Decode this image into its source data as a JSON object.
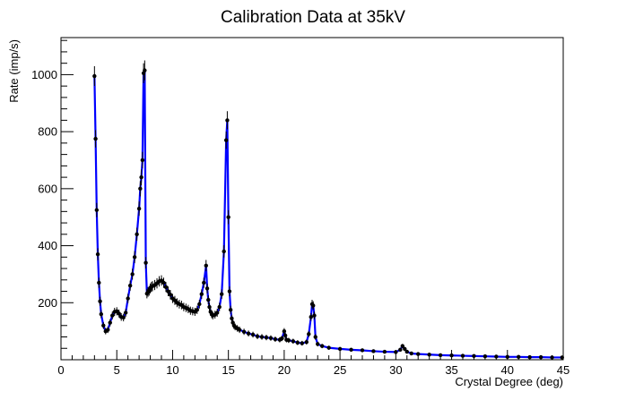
{
  "chart_data": {
    "type": "line",
    "title": "Calibration Data at 35kV",
    "xlabel": "Crystal Degree (deg)",
    "ylabel": "Rate (imp/s)",
    "xlim": [
      0,
      45
    ],
    "ylim": [
      0,
      1130
    ],
    "x_ticks": [
      0,
      5,
      10,
      15,
      20,
      25,
      30,
      35,
      40,
      45
    ],
    "y_ticks": [
      200,
      400,
      600,
      800,
      1000
    ],
    "grid": false,
    "legend": "none",
    "line_color": "#0000ff",
    "marker_color": "#000000",
    "series": [
      {
        "x": [
          3.0,
          3.1,
          3.2,
          3.3,
          3.4,
          3.5,
          3.6,
          3.8,
          4.0,
          4.2,
          4.4,
          4.6,
          4.8,
          5.0,
          5.2,
          5.4,
          5.6,
          5.8,
          6.0,
          6.2,
          6.4,
          6.6,
          6.8,
          7.0,
          7.1,
          7.2,
          7.3,
          7.4,
          7.5,
          7.6,
          7.7,
          7.8,
          7.9,
          8.0,
          8.1,
          8.2,
          8.4,
          8.6,
          8.8,
          9.0,
          9.2,
          9.4,
          9.6,
          9.8,
          10.0,
          10.2,
          10.4,
          10.6,
          10.8,
          11.0,
          11.2,
          11.4,
          11.6,
          11.8,
          12.0,
          12.2,
          12.4,
          12.6,
          12.8,
          13.0,
          13.1,
          13.2,
          13.3,
          13.4,
          13.5,
          13.6,
          13.8,
          14.0,
          14.2,
          14.4,
          14.6,
          14.8,
          14.9,
          15.0,
          15.1,
          15.2,
          15.3,
          15.4,
          15.5,
          15.6,
          15.8,
          16.0,
          16.4,
          16.8,
          17.2,
          17.6,
          18.0,
          18.4,
          18.8,
          19.2,
          19.6,
          19.8,
          20.0,
          20.1,
          20.2,
          20.4,
          20.8,
          21.2,
          21.6,
          22.0,
          22.2,
          22.4,
          22.5,
          22.6,
          22.7,
          22.8,
          23.0,
          23.4,
          24.0,
          25.0,
          26.0,
          27.0,
          28.0,
          29.0,
          30.0,
          30.4,
          30.6,
          30.8,
          31.0,
          31.4,
          32.0,
          33.0,
          34.0,
          35.0,
          36.0,
          37.0,
          38.0,
          39.0,
          40.0,
          41.0,
          42.0,
          43.0,
          44.0,
          44.9
        ],
        "y": [
          995,
          775,
          525,
          370,
          270,
          205,
          160,
          120,
          100,
          105,
          130,
          155,
          168,
          170,
          162,
          150,
          148,
          165,
          215,
          260,
          300,
          360,
          440,
          530,
          600,
          640,
          700,
          1005,
          1015,
          340,
          232,
          238,
          242,
          250,
          255,
          258,
          262,
          268,
          275,
          278,
          270,
          255,
          240,
          228,
          215,
          208,
          200,
          195,
          192,
          185,
          182,
          178,
          172,
          170,
          168,
          175,
          195,
          230,
          270,
          330,
          250,
          210,
          185,
          168,
          160,
          155,
          158,
          165,
          185,
          230,
          380,
          770,
          840,
          500,
          240,
          175,
          145,
          130,
          120,
          115,
          110,
          105,
          98,
          92,
          88,
          82,
          80,
          78,
          76,
          72,
          70,
          75,
          100,
          85,
          70,
          68,
          65,
          60,
          58,
          62,
          90,
          150,
          195,
          190,
          155,
          80,
          55,
          48,
          42,
          38,
          35,
          33,
          30,
          28,
          27,
          35,
          48,
          38,
          28,
          22,
          20,
          18,
          16,
          15,
          14,
          13,
          12,
          11,
          10,
          10,
          9,
          9,
          8,
          8
        ]
      }
    ]
  }
}
